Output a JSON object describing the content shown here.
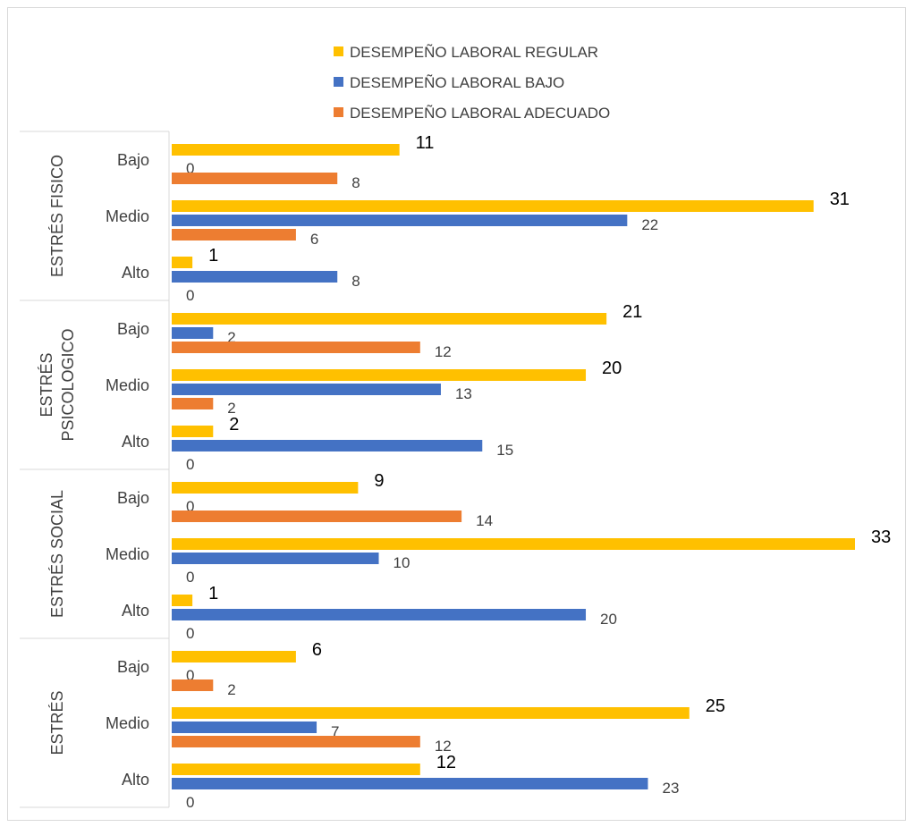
{
  "chart_data": {
    "type": "bar",
    "orientation": "horizontal",
    "legend_position": "top",
    "grid": false,
    "xlim": [
      0,
      33
    ],
    "series": [
      {
        "name": "DESEMPEÑO LABORAL REGULAR",
        "color": "#FFC000"
      },
      {
        "name": "DESEMPEÑO LABORAL BAJO",
        "color": "#4472C4"
      },
      {
        "name": "DESEMPEÑO LABORAL ADECUADO",
        "color": "#ED7D31"
      }
    ],
    "groups": [
      {
        "label": "ESTRÉS FISICO",
        "label_lines": [
          "ESTRÉS FISICO"
        ],
        "categories": [
          {
            "label": "Bajo",
            "values": [
              11,
              0,
              8
            ]
          },
          {
            "label": "Medio",
            "values": [
              31,
              22,
              6
            ]
          },
          {
            "label": "Alto",
            "values": [
              1,
              8,
              0
            ]
          }
        ]
      },
      {
        "label": "ESTRÉS PSICOLOGICO",
        "label_lines": [
          "ESTRÉS",
          "PSICOLOGICO"
        ],
        "categories": [
          {
            "label": "Bajo",
            "values": [
              21,
              2,
              12
            ]
          },
          {
            "label": "Medio",
            "values": [
              20,
              13,
              2
            ]
          },
          {
            "label": "Alto",
            "values": [
              2,
              15,
              0
            ]
          }
        ]
      },
      {
        "label": "ESTRÉS SOCIAL",
        "label_lines": [
          "ESTRÉS SOCIAL"
        ],
        "categories": [
          {
            "label": "Bajo",
            "values": [
              9,
              0,
              14
            ]
          },
          {
            "label": "Medio",
            "values": [
              33,
              10,
              0
            ]
          },
          {
            "label": "Alto",
            "values": [
              1,
              20,
              0
            ]
          }
        ]
      },
      {
        "label": "ESTRÉS",
        "label_lines": [
          "ESTRÉS"
        ],
        "categories": [
          {
            "label": "Bajo",
            "values": [
              6,
              0,
              2
            ]
          },
          {
            "label": "Medio",
            "values": [
              25,
              7,
              12
            ]
          },
          {
            "label": "Alto",
            "values": [
              12,
              23,
              0
            ]
          }
        ]
      }
    ]
  }
}
